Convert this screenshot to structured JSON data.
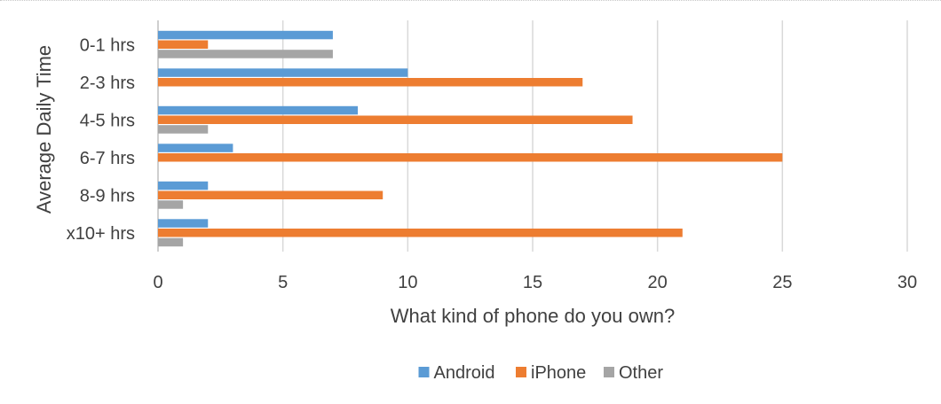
{
  "chart_data": {
    "type": "bar",
    "orientation": "horizontal",
    "categories": [
      "0-1 hrs",
      "2-3 hrs",
      "4-5 hrs",
      "6-7 hrs",
      "8-9 hrs",
      "x10+ hrs"
    ],
    "series": [
      {
        "name": "Android",
        "color": "#5b9bd5",
        "values": [
          7,
          10,
          8,
          3,
          2,
          2
        ]
      },
      {
        "name": "iPhone",
        "color": "#ed7d31",
        "values": [
          2,
          17,
          19,
          25,
          9,
          21
        ]
      },
      {
        "name": "Other",
        "color": "#a5a5a5",
        "values": [
          7,
          0,
          2,
          0,
          1,
          1
        ]
      }
    ],
    "xlabel": "What kind of phone do you own?",
    "ylabel": "Average Daily Time",
    "xlim": [
      0,
      30
    ],
    "xticks": [
      "0",
      "5",
      "10",
      "15",
      "20",
      "25",
      "30"
    ],
    "grid": "vertical",
    "legend_position": "bottom"
  }
}
